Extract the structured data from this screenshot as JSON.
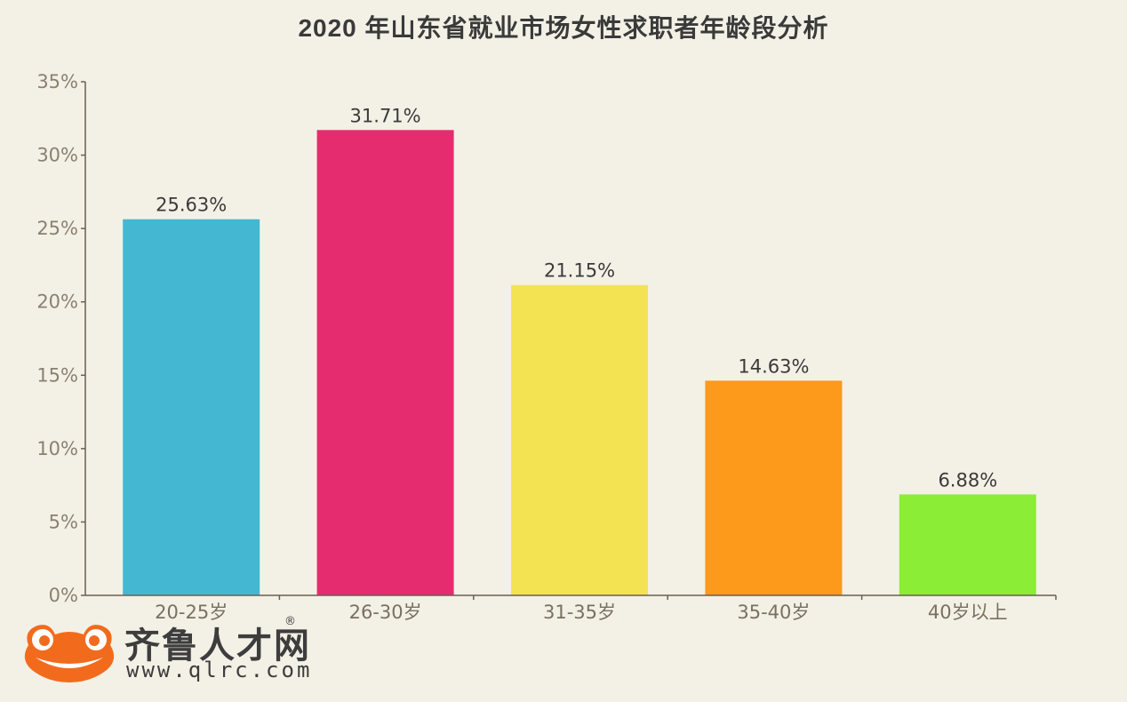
{
  "chart_data": {
    "type": "bar",
    "title": "2020 年山东省就业市场女性求职者年龄段分析",
    "xlabel": "",
    "ylabel": "",
    "categories": [
      "20-25岁",
      "26-30岁",
      "31-35岁",
      "35-40岁",
      "40岁以上"
    ],
    "values": [
      25.63,
      31.71,
      21.15,
      14.63,
      6.88
    ],
    "value_labels": [
      "25.63%",
      "31.71%",
      "21.15%",
      "14.63%",
      "6.88%"
    ],
    "colors": [
      "#44b8d3",
      "#e52c6e",
      "#f3e353",
      "#fd991b",
      "#8bed35"
    ],
    "ylim": [
      0,
      35
    ],
    "yticks": [
      0,
      5,
      10,
      15,
      20,
      25,
      30,
      35
    ],
    "ytick_labels": [
      "0%",
      "5%",
      "10%",
      "15%",
      "20%",
      "25%",
      "30%",
      "35%"
    ],
    "grid": false,
    "legend": "none"
  },
  "branding": {
    "logo_text": "齐鲁人才网",
    "registered_mark": "®",
    "url": "www.qlrc.com",
    "logo_color": "#f26b1d"
  }
}
